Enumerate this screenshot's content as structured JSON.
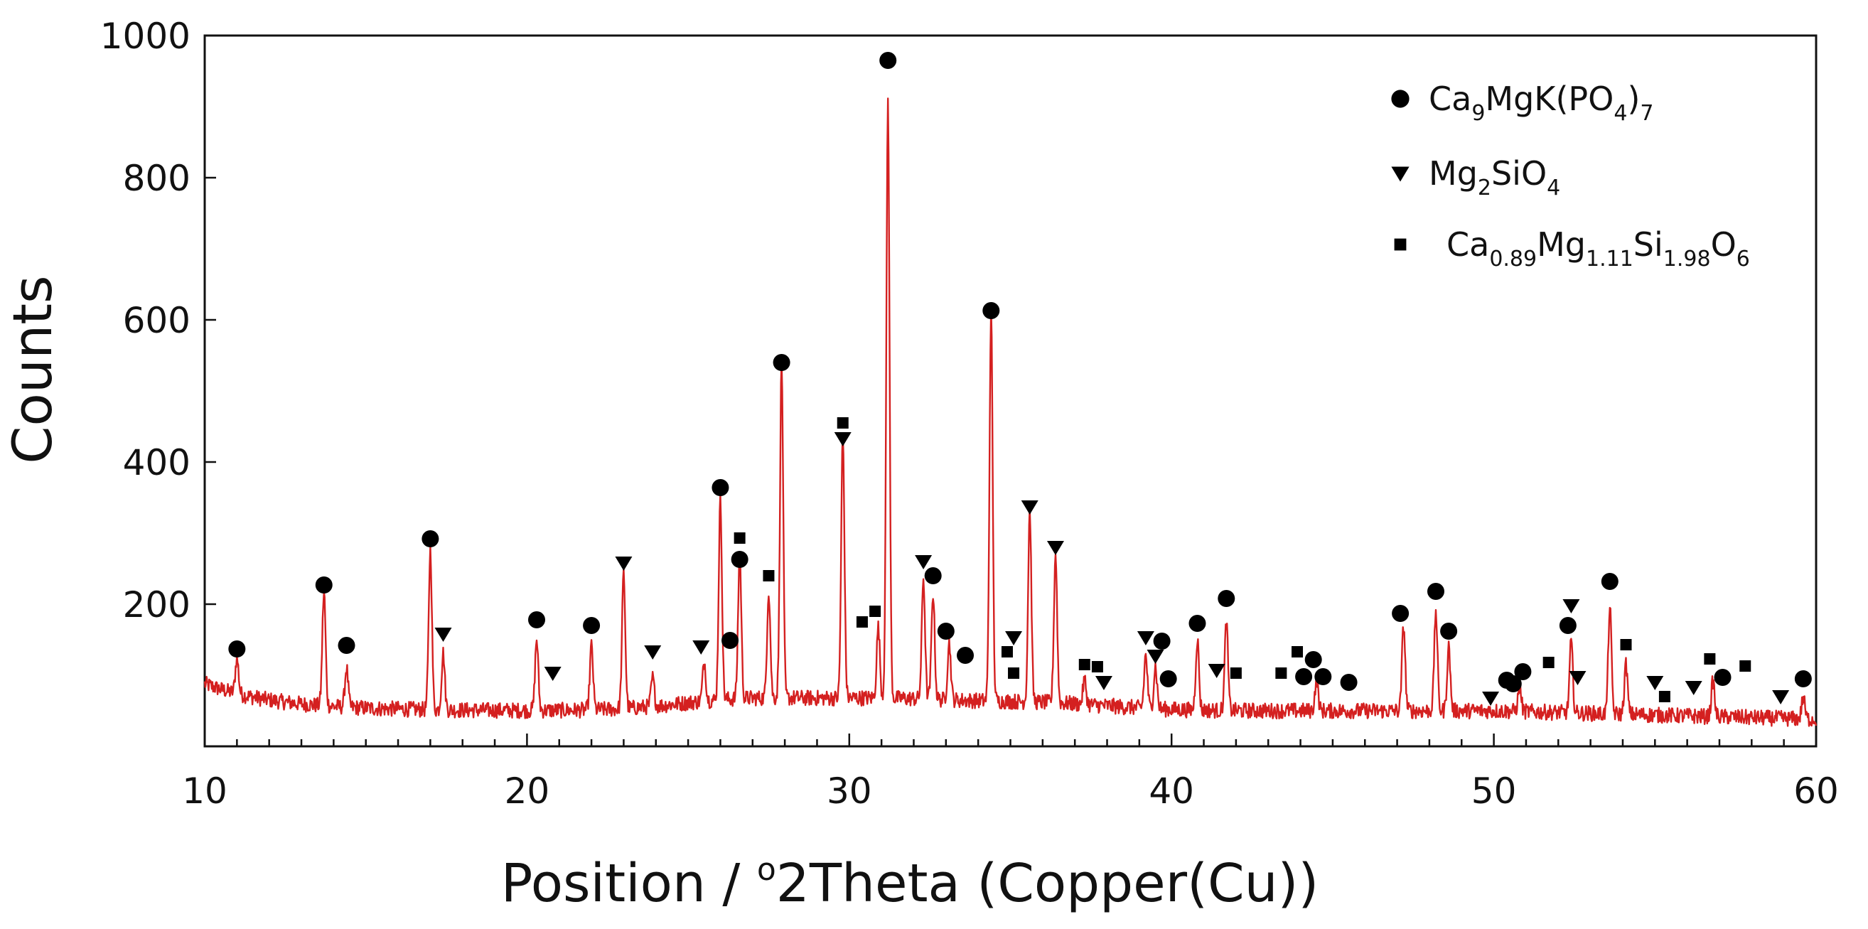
{
  "chart_data": {
    "type": "line",
    "xlabel": "Position / °2Theta (Copper(Cu))",
    "xlabel_parts": [
      "Position / ",
      "o",
      "2Theta (Copper(Cu))"
    ],
    "ylabel": "Counts",
    "xlim": [
      10,
      60
    ],
    "ylim": [
      0,
      1000
    ],
    "x_ticks": [
      10,
      20,
      30,
      40,
      50,
      60
    ],
    "y_ticks": [
      200,
      400,
      600,
      800,
      1000
    ],
    "grid": false,
    "legend_position": "top-right",
    "line_color": "#d42020",
    "background_level": 50,
    "peaks": [
      {
        "x": 11.0,
        "y": 100
      },
      {
        "x": 13.7,
        "y": 210
      },
      {
        "x": 14.4,
        "y": 105
      },
      {
        "x": 17.0,
        "y": 275
      },
      {
        "x": 17.4,
        "y": 130
      },
      {
        "x": 20.3,
        "y": 150
      },
      {
        "x": 22.0,
        "y": 140
      },
      {
        "x": 23.0,
        "y": 240
      },
      {
        "x": 23.9,
        "y": 90
      },
      {
        "x": 25.5,
        "y": 105
      },
      {
        "x": 26.0,
        "y": 330
      },
      {
        "x": 26.6,
        "y": 250
      },
      {
        "x": 27.5,
        "y": 200
      },
      {
        "x": 27.9,
        "y": 520
      },
      {
        "x": 29.8,
        "y": 420
      },
      {
        "x": 30.9,
        "y": 150
      },
      {
        "x": 31.2,
        "y": 890
      },
      {
        "x": 32.3,
        "y": 220
      },
      {
        "x": 32.6,
        "y": 200
      },
      {
        "x": 33.1,
        "y": 130
      },
      {
        "x": 34.4,
        "y": 595
      },
      {
        "x": 35.6,
        "y": 320
      },
      {
        "x": 36.4,
        "y": 260
      },
      {
        "x": 37.3,
        "y": 85
      },
      {
        "x": 39.2,
        "y": 125
      },
      {
        "x": 39.5,
        "y": 110
      },
      {
        "x": 40.8,
        "y": 150
      },
      {
        "x": 41.7,
        "y": 175
      },
      {
        "x": 44.5,
        "y": 95
      },
      {
        "x": 47.2,
        "y": 170
      },
      {
        "x": 48.2,
        "y": 190
      },
      {
        "x": 48.6,
        "y": 140
      },
      {
        "x": 50.8,
        "y": 85
      },
      {
        "x": 52.4,
        "y": 150
      },
      {
        "x": 53.6,
        "y": 200
      },
      {
        "x": 54.1,
        "y": 120
      },
      {
        "x": 56.8,
        "y": 100
      },
      {
        "x": 59.6,
        "y": 80
      }
    ],
    "series": [
      {
        "name": "Ca9MgK(PO4)7",
        "marker": "circle",
        "legend_parts": [
          [
            "Ca",
            ""
          ],
          [
            "9",
            "sub"
          ],
          [
            "MgK(PO",
            ""
          ],
          [
            "4",
            "sub"
          ],
          [
            ")",
            ""
          ],
          [
            "7",
            "sub"
          ]
        ],
        "points": [
          {
            "x": 11.0,
            "y": 137
          },
          {
            "x": 13.7,
            "y": 227
          },
          {
            "x": 14.4,
            "y": 142
          },
          {
            "x": 17.0,
            "y": 292
          },
          {
            "x": 20.3,
            "y": 178
          },
          {
            "x": 22.0,
            "y": 170
          },
          {
            "x": 26.0,
            "y": 364
          },
          {
            "x": 26.3,
            "y": 149
          },
          {
            "x": 26.6,
            "y": 263
          },
          {
            "x": 27.9,
            "y": 540
          },
          {
            "x": 31.2,
            "y": 965
          },
          {
            "x": 32.6,
            "y": 240
          },
          {
            "x": 33.0,
            "y": 162
          },
          {
            "x": 33.6,
            "y": 128
          },
          {
            "x": 34.4,
            "y": 613
          },
          {
            "x": 39.7,
            "y": 148
          },
          {
            "x": 39.9,
            "y": 95
          },
          {
            "x": 40.8,
            "y": 173
          },
          {
            "x": 41.7,
            "y": 208
          },
          {
            "x": 44.1,
            "y": 98
          },
          {
            "x": 44.4,
            "y": 122
          },
          {
            "x": 44.7,
            "y": 98
          },
          {
            "x": 45.5,
            "y": 90
          },
          {
            "x": 47.1,
            "y": 187
          },
          {
            "x": 48.2,
            "y": 218
          },
          {
            "x": 48.6,
            "y": 162
          },
          {
            "x": 50.4,
            "y": 93
          },
          {
            "x": 50.6,
            "y": 88
          },
          {
            "x": 50.9,
            "y": 105
          },
          {
            "x": 52.3,
            "y": 170
          },
          {
            "x": 53.6,
            "y": 232
          },
          {
            "x": 57.1,
            "y": 97
          },
          {
            "x": 59.6,
            "y": 95
          }
        ]
      },
      {
        "name": "Mg2SiO4",
        "marker": "triangle-down",
        "legend_parts": [
          [
            "Mg",
            ""
          ],
          [
            "2",
            "sub"
          ],
          [
            "SiO",
            ""
          ],
          [
            "4",
            "sub"
          ]
        ],
        "points": [
          {
            "x": 17.4,
            "y": 158
          },
          {
            "x": 20.8,
            "y": 103
          },
          {
            "x": 23.0,
            "y": 258
          },
          {
            "x": 23.9,
            "y": 133
          },
          {
            "x": 25.4,
            "y": 140
          },
          {
            "x": 29.8,
            "y": 433
          },
          {
            "x": 32.3,
            "y": 260
          },
          {
            "x": 35.1,
            "y": 153
          },
          {
            "x": 35.6,
            "y": 337
          },
          {
            "x": 36.4,
            "y": 280
          },
          {
            "x": 37.9,
            "y": 90
          },
          {
            "x": 39.2,
            "y": 153
          },
          {
            "x": 39.5,
            "y": 127
          },
          {
            "x": 41.4,
            "y": 107
          },
          {
            "x": 49.9,
            "y": 68
          },
          {
            "x": 52.4,
            "y": 198
          },
          {
            "x": 52.6,
            "y": 97
          },
          {
            "x": 55.0,
            "y": 90
          },
          {
            "x": 56.2,
            "y": 83
          },
          {
            "x": 58.9,
            "y": 70
          }
        ]
      },
      {
        "name": "Ca0.89Mg1.11Si1.98O6",
        "marker": "square",
        "legend_parts": [
          [
            "Ca",
            ""
          ],
          [
            "0.89",
            "sub"
          ],
          [
            "Mg",
            ""
          ],
          [
            "1.11",
            "sub"
          ],
          [
            "Si",
            ""
          ],
          [
            "1.98",
            "sub"
          ],
          [
            "O",
            ""
          ],
          [
            "6",
            "sub"
          ]
        ],
        "points": [
          {
            "x": 26.6,
            "y": 293
          },
          {
            "x": 27.5,
            "y": 240
          },
          {
            "x": 29.8,
            "y": 455
          },
          {
            "x": 30.4,
            "y": 175
          },
          {
            "x": 30.8,
            "y": 190
          },
          {
            "x": 34.9,
            "y": 133
          },
          {
            "x": 35.1,
            "y": 103
          },
          {
            "x": 37.3,
            "y": 115
          },
          {
            "x": 37.7,
            "y": 112
          },
          {
            "x": 42.0,
            "y": 103
          },
          {
            "x": 43.4,
            "y": 103
          },
          {
            "x": 43.9,
            "y": 133
          },
          {
            "x": 51.7,
            "y": 118
          },
          {
            "x": 54.1,
            "y": 143
          },
          {
            "x": 55.3,
            "y": 70
          },
          {
            "x": 56.7,
            "y": 123
          },
          {
            "x": 57.8,
            "y": 113
          }
        ]
      }
    ]
  }
}
